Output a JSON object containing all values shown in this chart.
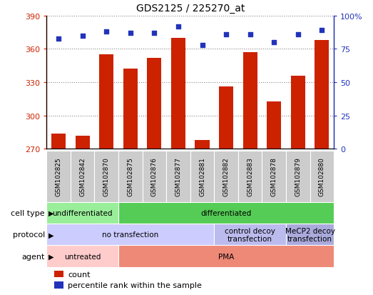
{
  "title": "GDS2125 / 225270_at",
  "samples": [
    "GSM102825",
    "GSM102842",
    "GSM102870",
    "GSM102875",
    "GSM102876",
    "GSM102877",
    "GSM102881",
    "GSM102882",
    "GSM102883",
    "GSM102878",
    "GSM102879",
    "GSM102880"
  ],
  "counts": [
    284,
    282,
    355,
    342,
    352,
    370,
    278,
    326,
    357,
    313,
    336,
    368
  ],
  "percentiles": [
    83,
    85,
    88,
    87,
    87,
    92,
    78,
    86,
    86,
    80,
    86,
    89
  ],
  "ylim_left": [
    270,
    390
  ],
  "ylim_right": [
    0,
    100
  ],
  "yticks_left": [
    270,
    300,
    330,
    360,
    390
  ],
  "yticks_right": [
    0,
    25,
    50,
    75,
    100
  ],
  "bar_color": "#cc2200",
  "dot_color": "#2233bb",
  "cell_type_labels": [
    {
      "label": "undifferentiated",
      "start": 0,
      "end": 3,
      "color": "#99ee99"
    },
    {
      "label": "differentiated",
      "start": 3,
      "end": 12,
      "color": "#55cc55"
    }
  ],
  "protocol_labels": [
    {
      "label": "no transfection",
      "start": 0,
      "end": 7,
      "color": "#ccccff"
    },
    {
      "label": "control decoy\ntransfection",
      "start": 7,
      "end": 10,
      "color": "#bbbbee"
    },
    {
      "label": "MeCP2 decoy\ntransfection",
      "start": 10,
      "end": 12,
      "color": "#aaaadd"
    }
  ],
  "agent_labels": [
    {
      "label": "untreated",
      "start": 0,
      "end": 3,
      "color": "#ffcccc"
    },
    {
      "label": "PMA",
      "start": 3,
      "end": 12,
      "color": "#ee8877"
    }
  ],
  "row_labels": [
    "cell type",
    "protocol",
    "agent"
  ],
  "legend_items": [
    {
      "color": "#cc2200",
      "label": "count"
    },
    {
      "color": "#2233bb",
      "label": "percentile rank within the sample"
    }
  ],
  "sample_box_color": "#cccccc",
  "background_color": "#ffffff"
}
